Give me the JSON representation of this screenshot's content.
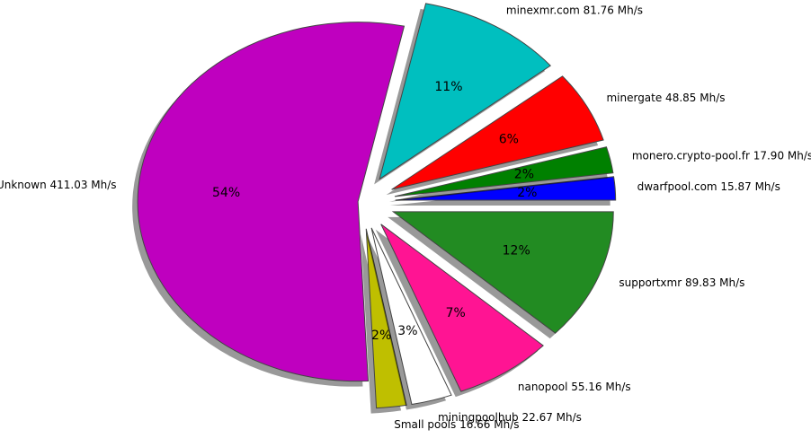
{
  "chart_data": {
    "type": "pie",
    "categories": [
      "dwarfpool.com 15.87 Mh/s",
      "monero.crypto-pool.fr 17.90 Mh/s",
      "minergate 48.85 Mh/s",
      "minexmr.com 81.76 Mh/s",
      "Unknown 411.03 Mh/s",
      "Small pools 16.66 Mh/s",
      "miningpoolhub 22.67 Mh/s",
      "nanopool 55.16 Mh/s",
      "supportxmr 89.83 Mh/s"
    ],
    "values": [
      15.87,
      17.9,
      48.85,
      81.76,
      411.03,
      16.66,
      22.67,
      55.16,
      89.83
    ],
    "pct_labels": [
      "2%",
      "2%",
      "6%",
      "11%",
      "54%",
      "2%",
      "3%",
      "7%",
      "12%"
    ],
    "colors": [
      "#0000ff",
      "#008000",
      "#ff0000",
      "#00bfbf",
      "#bf00bf",
      "#bfbf00",
      "#ffffff",
      "#ff1493",
      "#228b22"
    ],
    "explode": [
      0.15,
      0.15,
      0.15,
      0.15,
      0.02,
      0.15,
      0.15,
      0.15,
      0.15
    ],
    "shadow": true
  }
}
